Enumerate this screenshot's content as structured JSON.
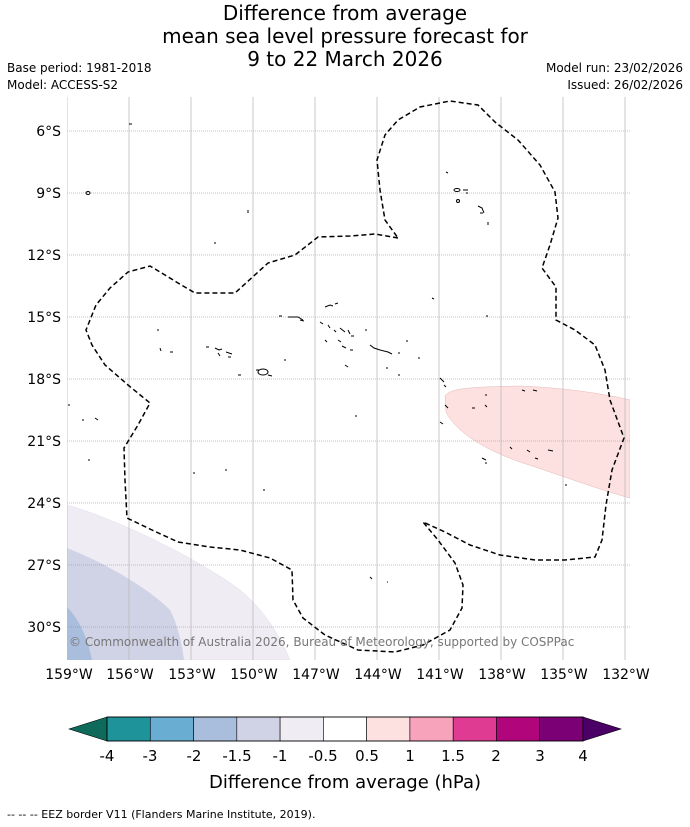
{
  "title": {
    "line1": "Difference from average",
    "line2": "mean sea level pressure forecast for",
    "line3": "9 to 22 March 2026"
  },
  "meta_left": {
    "base_period": "Base period: 1981-2018",
    "model": "Model: ACCESS-S2"
  },
  "meta_right": {
    "model_run": "Model run: 23/02/2026",
    "issued": "Issued: 26/02/2026"
  },
  "map": {
    "lat_labels": [
      "6°S",
      "9°S",
      "12°S",
      "15°S",
      "18°S",
      "21°S",
      "24°S",
      "27°S",
      "30°S"
    ],
    "lon_labels": [
      "159°W",
      "156°W",
      "153°W",
      "150°W",
      "147°W",
      "144°W",
      "141°W",
      "138°W",
      "135°W",
      "132°W"
    ],
    "copyright": "© Commonwealth of Australia 2026, Bureau of Meteorology, supported by COSPPac"
  },
  "colorbar": {
    "label": "Difference from average (hPa)",
    "ticks": [
      "-4",
      "-3",
      "-2",
      "-1.5",
      "-1",
      "-0.5",
      "0.5",
      "1",
      "1.5",
      "2",
      "3",
      "4"
    ],
    "colors": {
      "under": "#0e6b5c",
      "bins": [
        "#1f939a",
        "#6aadd3",
        "#a9bddc",
        "#d0d2e6",
        "#f0ecf4",
        "#ffffff",
        "#fde0e0",
        "#f7a3bc",
        "#df3b92",
        "#b1057c",
        "#7b0075"
      ],
      "over": "#4b0066"
    }
  },
  "footnote": "--  --  -- EEZ border V11 (Flanders Marine Institute, 2019)."
}
